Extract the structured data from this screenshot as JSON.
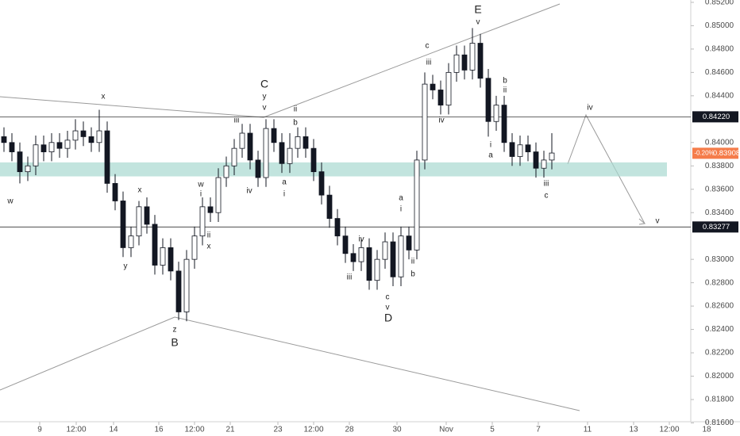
{
  "chart_data": {
    "type": "candlestick",
    "x": [
      0,
      1,
      2,
      3,
      4,
      5,
      6,
      7,
      8,
      9,
      10,
      11,
      12,
      13,
      14,
      15,
      16,
      17,
      18,
      19,
      20,
      21,
      22,
      23,
      24,
      25,
      26,
      27,
      28,
      29,
      30,
      31,
      32,
      33,
      34,
      35,
      36,
      37,
      38,
      39,
      40,
      41,
      42,
      43,
      44,
      45,
      46,
      47,
      48,
      49,
      50,
      51,
      52,
      53,
      54,
      55,
      56,
      57,
      58,
      59,
      60,
      61,
      62,
      63,
      64,
      65,
      66,
      67,
      68,
      69
    ],
    "open": [
      0.8405,
      0.84,
      0.8392,
      0.8375,
      0.838,
      0.8398,
      0.8392,
      0.84,
      0.8395,
      0.8402,
      0.841,
      0.8405,
      0.84,
      0.841,
      0.8365,
      0.835,
      0.831,
      0.832,
      0.8345,
      0.833,
      0.8295,
      0.831,
      0.829,
      0.8255,
      0.83,
      0.832,
      0.8345,
      0.834,
      0.837,
      0.838,
      0.8395,
      0.8408,
      0.8385,
      0.837,
      0.8412,
      0.84,
      0.8382,
      0.8395,
      0.8405,
      0.8395,
      0.8375,
      0.8355,
      0.8335,
      0.832,
      0.8305,
      0.8298,
      0.831,
      0.8282,
      0.83,
      0.8315,
      0.8285,
      0.832,
      0.8308,
      0.8385,
      0.845,
      0.8445,
      0.8432,
      0.846,
      0.8475,
      0.8462,
      0.8485,
      0.8455,
      0.8418,
      0.8432,
      0.84,
      0.8388,
      0.8398,
      0.8392,
      0.8378,
      0.8385
    ],
    "high": [
      0.8413,
      0.8408,
      0.84,
      0.8388,
      0.8406,
      0.8406,
      0.8408,
      0.8408,
      0.841,
      0.842,
      0.8418,
      0.8413,
      0.8428,
      0.8418,
      0.8373,
      0.8358,
      0.8328,
      0.835,
      0.8353,
      0.8338,
      0.8318,
      0.8318,
      0.8298,
      0.8308,
      0.8328,
      0.8353,
      0.8353,
      0.8378,
      0.8388,
      0.8403,
      0.8416,
      0.8416,
      0.8393,
      0.842,
      0.842,
      0.8408,
      0.8408,
      0.8413,
      0.8413,
      0.8403,
      0.8383,
      0.8363,
      0.8343,
      0.8328,
      0.8313,
      0.8318,
      0.8318,
      0.8308,
      0.8323,
      0.8323,
      0.8328,
      0.8328,
      0.8393,
      0.846,
      0.8458,
      0.8453,
      0.8468,
      0.8483,
      0.8483,
      0.8498,
      0.8493,
      0.8463,
      0.844,
      0.844,
      0.8408,
      0.8406,
      0.8406,
      0.84,
      0.8393,
      0.8408
    ],
    "low": [
      0.8392,
      0.8384,
      0.8365,
      0.8367,
      0.8372,
      0.8384,
      0.8384,
      0.8387,
      0.8387,
      0.8394,
      0.8397,
      0.8392,
      0.8392,
      0.8357,
      0.8342,
      0.8302,
      0.8302,
      0.8312,
      0.8322,
      0.8287,
      0.8287,
      0.8282,
      0.8248,
      0.8247,
      0.8292,
      0.8312,
      0.8332,
      0.8332,
      0.8362,
      0.8372,
      0.8387,
      0.8377,
      0.8362,
      0.8362,
      0.8392,
      0.8374,
      0.8374,
      0.8387,
      0.8387,
      0.8367,
      0.8347,
      0.8327,
      0.8312,
      0.8297,
      0.829,
      0.829,
      0.8274,
      0.8274,
      0.8292,
      0.8277,
      0.8277,
      0.83,
      0.83,
      0.8377,
      0.8437,
      0.8424,
      0.8424,
      0.8452,
      0.8454,
      0.8454,
      0.8447,
      0.8405,
      0.841,
      0.8392,
      0.838,
      0.838,
      0.8384,
      0.837,
      0.837,
      0.8377
    ],
    "close": [
      0.84,
      0.8392,
      0.8375,
      0.838,
      0.8398,
      0.8392,
      0.84,
      0.8395,
      0.8402,
      0.841,
      0.8405,
      0.84,
      0.841,
      0.8365,
      0.835,
      0.831,
      0.832,
      0.8345,
      0.833,
      0.8295,
      0.831,
      0.829,
      0.8255,
      0.83,
      0.832,
      0.8345,
      0.834,
      0.837,
      0.838,
      0.8395,
      0.8408,
      0.8385,
      0.837,
      0.8412,
      0.84,
      0.8382,
      0.8395,
      0.8405,
      0.8395,
      0.8375,
      0.8355,
      0.8335,
      0.832,
      0.8305,
      0.8298,
      0.831,
      0.8282,
      0.83,
      0.8315,
      0.8285,
      0.832,
      0.8308,
      0.8385,
      0.845,
      0.8445,
      0.8432,
      0.846,
      0.8475,
      0.8462,
      0.8485,
      0.8455,
      0.8418,
      0.8432,
      0.84,
      0.8388,
      0.8398,
      0.8392,
      0.8378,
      0.8385,
      0.8391
    ],
    "up_color": "#ffffff",
    "down_color": "#131722",
    "outline_color": "#131722",
    "xlim": [
      -0.5,
      92.7
    ],
    "xticks": [
      {
        "value": 4.5,
        "label": "9"
      },
      {
        "value": 9.1,
        "label": "12:00"
      },
      {
        "value": 13.8,
        "label": "14"
      },
      {
        "value": 19.5,
        "label": "16"
      },
      {
        "value": 24,
        "label": "12:00"
      },
      {
        "value": 28.5,
        "label": "21"
      },
      {
        "value": 34.5,
        "label": "23"
      },
      {
        "value": 39,
        "label": "12:00"
      },
      {
        "value": 43.5,
        "label": "28"
      },
      {
        "value": 49.5,
        "label": "30"
      },
      {
        "value": 55.7,
        "label": "Nov"
      },
      {
        "value": 61.5,
        "label": "5"
      },
      {
        "value": 67.3,
        "label": "7"
      },
      {
        "value": 73.5,
        "label": "11"
      },
      {
        "value": 79.3,
        "label": "13"
      },
      {
        "value": 83.8,
        "label": "12:00"
      },
      {
        "value": 88.5,
        "label": "18"
      }
    ],
    "ylim": [
      0.8161,
      0.8522
    ],
    "yticks": [
      {
        "value": 0.816,
        "label": "0.81600"
      },
      {
        "value": 0.818,
        "label": "0.81800"
      },
      {
        "value": 0.82,
        "label": "0.82000"
      },
      {
        "value": 0.822,
        "label": "0.82200"
      },
      {
        "value": 0.824,
        "label": "0.82400"
      },
      {
        "value": 0.826,
        "label": "0.82600"
      },
      {
        "value": 0.828,
        "label": "0.82800"
      },
      {
        "value": 0.83,
        "label": "0.83000"
      },
      {
        "value": 0.834,
        "label": "0.83400"
      },
      {
        "value": 0.836,
        "label": "0.83600"
      },
      {
        "value": 0.838,
        "label": "0.83800"
      },
      {
        "value": 0.84,
        "label": "0.84000"
      },
      {
        "value": 0.844,
        "label": "0.84400"
      },
      {
        "value": 0.846,
        "label": "0.84600"
      },
      {
        "value": 0.848,
        "label": "0.84800"
      },
      {
        "value": 0.85,
        "label": "0.85000"
      },
      {
        "value": 0.852,
        "label": "0.85200"
      }
    ],
    "grid": false,
    "levels": [
      {
        "value": 0.8422,
        "label": "0.84220"
      },
      {
        "value": 0.83277,
        "label": "0.83277"
      }
    ],
    "current_price": {
      "value": 0.83908,
      "label": "0.83908",
      "change": "-0.20%"
    },
    "zone": [
      0.8371,
      0.8383
    ],
    "annotations": [
      "w",
      "x",
      "y",
      "x",
      "z",
      "B",
      "w",
      "i",
      "ii",
      "x",
      "iii",
      "iv",
      "C",
      "y",
      "v",
      "ii",
      "b",
      "a",
      "i",
      "iii",
      "iv",
      "c",
      "v",
      "D",
      "a",
      "i",
      "ii",
      "b",
      "c",
      "iii",
      "iv",
      "E",
      "v",
      "b",
      "ii",
      "i",
      "a",
      "iii",
      "c",
      "iv",
      "v"
    ]
  }
}
